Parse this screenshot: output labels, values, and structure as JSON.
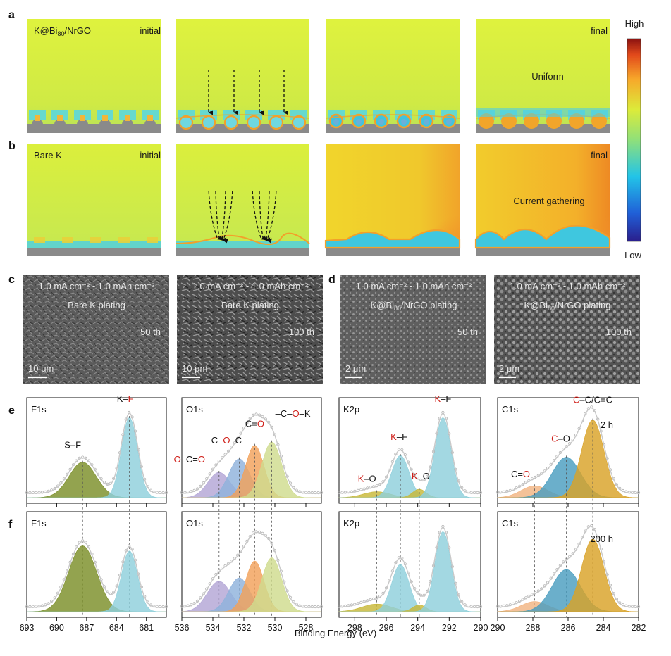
{
  "panel_a": {
    "letter": "a",
    "sample": "K@Bi",
    "sample_sub": "80",
    "sample_suffix": "/NrGO",
    "initial": "initial",
    "final": "final",
    "annotation": "Uniform"
  },
  "panel_b": {
    "letter": "b",
    "sample": "Bare K",
    "initial": "initial",
    "final": "final",
    "annotation": "Current gathering"
  },
  "colorbar": {
    "high": "High",
    "low": "Low"
  },
  "panel_c": {
    "letter": "c",
    "images": [
      {
        "condition": "1.0 mA cm⁻² - 1.0 mAh cm⁻²",
        "title": "Bare K plating",
        "cycle": "50 th",
        "scale": "10 μm"
      },
      {
        "condition": "1.0 mA cm⁻² - 1.0 mAh cm⁻²",
        "title": "Bare K plating",
        "cycle": "100 th",
        "scale": "10 μm"
      }
    ]
  },
  "panel_d": {
    "letter": "d",
    "images": [
      {
        "condition": "1.0 mA cm⁻² - 1.0 mAh cm⁻²",
        "title_pre": "K@Bi",
        "title_sub": "80",
        "title_post": "/NrGO plating",
        "cycle": "50 th",
        "scale": "2 μm"
      },
      {
        "condition": "1.0 mA cm⁻² - 1.0 mAh cm⁻²",
        "title_pre": "K@Bi",
        "title_sub": "80",
        "title_post": "/NrGO plating",
        "cycle": "100 th",
        "scale": "2 μm"
      }
    ]
  },
  "panel_e": {
    "letter": "e",
    "time": "2 h"
  },
  "panel_f": {
    "letter": "f",
    "time": "200 h"
  },
  "chart_data": [
    {
      "type": "area",
      "name": "e-F1s",
      "region": "F1s",
      "xlim": [
        693,
        679
      ],
      "x_reversed": true,
      "xticks": [
        "693",
        "690",
        "687",
        "684",
        "681"
      ],
      "peaks": [
        {
          "label_parts": [
            [
              "S–F",
              "k"
            ]
          ],
          "center": 687.4,
          "fwhm": 3.2,
          "height": 0.42,
          "color": "#7b8f28"
        },
        {
          "label_parts": [
            [
              "K–",
              "k"
            ],
            [
              "F",
              "r"
            ]
          ],
          "center": 682.7,
          "fwhm": 1.9,
          "height": 0.95,
          "color": "#8fd0dc"
        }
      ]
    },
    {
      "type": "area",
      "name": "e-O1s",
      "region": "O1s",
      "xlim": [
        536,
        527
      ],
      "x_reversed": true,
      "xticks": [
        "536",
        "534",
        "532",
        "530",
        "528"
      ],
      "peaks": [
        {
          "label_parts": [
            [
              "O",
              "r"
            ],
            [
              "–C=",
              "k"
            ],
            [
              "O",
              "r"
            ]
          ],
          "center": 533.6,
          "fwhm": 1.7,
          "height": 0.3,
          "color": "#b3a6d6"
        },
        {
          "label_parts": [
            [
              "C–",
              "k"
            ],
            [
              "O",
              "r"
            ],
            [
              "–C",
              "k"
            ]
          ],
          "center": 532.3,
          "fwhm": 1.6,
          "height": 0.46,
          "color": "#8fb2dc"
        },
        {
          "label_parts": [
            [
              "C=",
              "k"
            ],
            [
              "O",
              "r"
            ]
          ],
          "center": 531.3,
          "fwhm": 1.4,
          "height": 0.62,
          "color": "#f2a15a"
        },
        {
          "label_parts": [
            [
              "–C–",
              "k"
            ],
            [
              "O",
              "r"
            ],
            [
              "–K",
              "k"
            ]
          ],
          "center": 530.2,
          "fwhm": 1.5,
          "height": 0.66,
          "color": "#cfdc8e"
        }
      ]
    },
    {
      "type": "area",
      "name": "e-K2p",
      "region": "K2p",
      "xlim": [
        299,
        290
      ],
      "x_reversed": true,
      "xticks": [
        "298",
        "296",
        "294",
        "292",
        "290"
      ],
      "peaks": [
        {
          "label_parts": [
            [
              "K",
              "r"
            ],
            [
              "–O",
              "k"
            ]
          ],
          "center": 296.6,
          "fwhm": 2.0,
          "height": 0.07,
          "color": "#c8b838"
        },
        {
          "label_parts": [
            [
              "K",
              "r"
            ],
            [
              "–F",
              "k"
            ]
          ],
          "center": 295.1,
          "fwhm": 1.3,
          "height": 0.5,
          "color": "#8fd0dc"
        },
        {
          "label_parts": [
            [
              "K",
              "r"
            ],
            [
              "–O",
              "k"
            ]
          ],
          "center": 293.9,
          "fwhm": 1.0,
          "height": 0.1,
          "color": "#c8b838"
        },
        {
          "label_parts": [
            [
              "K",
              "r"
            ],
            [
              "–F",
              "k"
            ]
          ],
          "center": 292.4,
          "fwhm": 1.2,
          "height": 0.95,
          "color": "#8fd0dc"
        }
      ]
    },
    {
      "type": "area",
      "name": "e-C1s",
      "region": "C1s",
      "xlim": [
        290,
        282
      ],
      "x_reversed": true,
      "xticks": [
        "290",
        "288",
        "286",
        "284",
        "282"
      ],
      "peaks": [
        {
          "label_parts": [
            [
              "C=",
              "k"
            ],
            [
              "O",
              "r"
            ]
          ],
          "center": 287.9,
          "fwhm": 1.8,
          "height": 0.14,
          "color": "#f2b482"
        },
        {
          "label_parts": [
            [
              "C",
              "r"
            ],
            [
              "–O",
              "k"
            ]
          ],
          "center": 286.1,
          "fwhm": 1.9,
          "height": 0.48,
          "color": "#4a9ec0"
        },
        {
          "label_parts": [
            [
              "C",
              "r"
            ],
            [
              "–C/C=C",
              "k"
            ]
          ],
          "center": 284.6,
          "fwhm": 1.5,
          "height": 0.92,
          "color": "#d9a227"
        }
      ]
    },
    {
      "type": "area",
      "name": "f-F1s",
      "region": "F1s",
      "xlim": [
        693,
        679
      ],
      "x_reversed": true,
      "xticks": [
        "693",
        "690",
        "687",
        "684",
        "681"
      ],
      "peaks": [
        {
          "center": 687.4,
          "fwhm": 3.3,
          "height": 0.78,
          "color": "#7b8f28"
        },
        {
          "center": 682.7,
          "fwhm": 1.9,
          "height": 0.72,
          "color": "#8fd0dc"
        }
      ]
    },
    {
      "type": "area",
      "name": "f-O1s",
      "region": "O1s",
      "xlim": [
        536,
        527
      ],
      "x_reversed": true,
      "xticks": [
        "536",
        "534",
        "532",
        "530",
        "528"
      ],
      "peaks": [
        {
          "center": 533.6,
          "fwhm": 1.8,
          "height": 0.36,
          "color": "#b3a6d6"
        },
        {
          "center": 532.3,
          "fwhm": 1.6,
          "height": 0.4,
          "color": "#8fb2dc"
        },
        {
          "center": 531.3,
          "fwhm": 1.4,
          "height": 0.6,
          "color": "#f2a15a"
        },
        {
          "center": 530.2,
          "fwhm": 1.5,
          "height": 0.64,
          "color": "#cfdc8e"
        }
      ]
    },
    {
      "type": "area",
      "name": "f-K2p",
      "region": "K2p",
      "xlim": [
        299,
        290
      ],
      "x_reversed": true,
      "xticks": [
        "298",
        "296",
        "294",
        "292",
        "290"
      ],
      "peaks": [
        {
          "center": 296.6,
          "fwhm": 2.2,
          "height": 0.09,
          "color": "#c8b838"
        },
        {
          "center": 295.1,
          "fwhm": 1.3,
          "height": 0.56,
          "color": "#8fd0dc"
        },
        {
          "center": 293.9,
          "fwhm": 1.0,
          "height": 0.08,
          "color": "#c8b838"
        },
        {
          "center": 292.4,
          "fwhm": 1.2,
          "height": 0.95,
          "color": "#8fd0dc"
        }
      ]
    },
    {
      "type": "area",
      "name": "f-C1s",
      "region": "C1s",
      "xlim": [
        290,
        282
      ],
      "x_reversed": true,
      "xticks": [
        "290",
        "288",
        "286",
        "284",
        "282"
      ],
      "peaks": [
        {
          "center": 287.9,
          "fwhm": 1.8,
          "height": 0.12,
          "color": "#f2b482"
        },
        {
          "center": 286.1,
          "fwhm": 1.9,
          "height": 0.5,
          "color": "#4a9ec0"
        },
        {
          "center": 284.6,
          "fwhm": 1.5,
          "height": 0.86,
          "color": "#d9a227"
        }
      ]
    }
  ],
  "xlabel": "Binding Energy (eV)"
}
